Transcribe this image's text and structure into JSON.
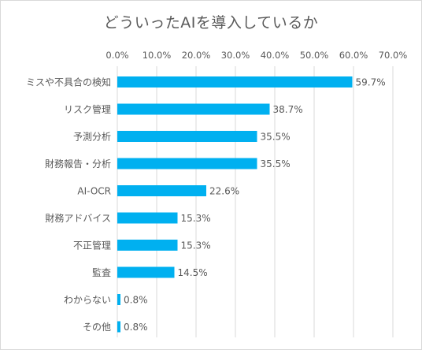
{
  "chart_data": {
    "type": "bar",
    "orientation": "horizontal",
    "title": "どういったAIを導入しているか",
    "categories": [
      "ミスや不具合の検知",
      "リスク管理",
      "予測分析",
      "財務報告・分析",
      "AI-OCR",
      "財務アドバイス",
      "不正管理",
      "監査",
      "わからない",
      "その他"
    ],
    "values": [
      59.7,
      38.7,
      35.5,
      35.5,
      22.6,
      15.3,
      15.3,
      14.5,
      0.8,
      0.8
    ],
    "data_labels": [
      "59.7%",
      "38.7%",
      "35.5%",
      "35.5%",
      "22.6%",
      "15.3%",
      "15.3%",
      "14.5%",
      "0.8%",
      "0.8%"
    ],
    "x_ticks": [
      "0.0%",
      "10.0%",
      "20.0%",
      "30.0%",
      "40.0%",
      "50.0%",
      "60.0%",
      "70.0%"
    ],
    "xlim": [
      0,
      70
    ],
    "x_axis_position": "top",
    "grid": true,
    "legend": "none",
    "bar_color": "#00b0f0",
    "grid_color": "#d9d9d9"
  }
}
